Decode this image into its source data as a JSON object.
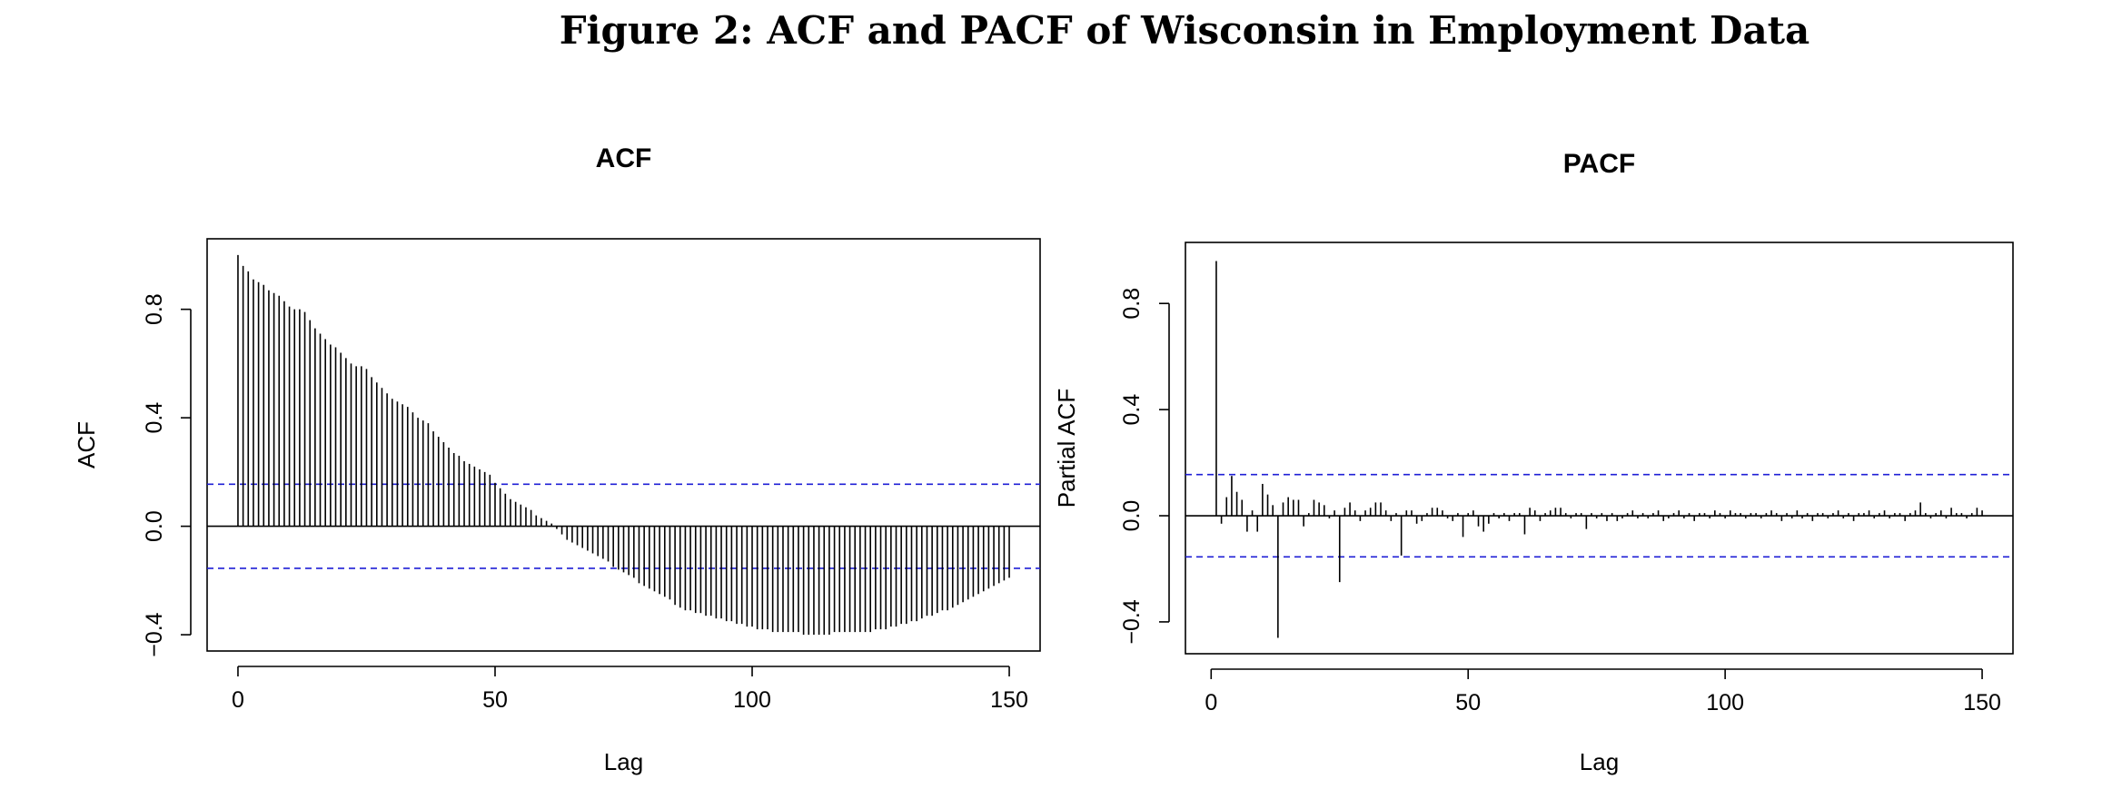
{
  "title": "Figure 2: ACF and PACF of Wisconsin in Employment Data",
  "chart_data": [
    {
      "type": "stem",
      "title": "ACF",
      "xlabel": "Lag",
      "ylabel": "ACF",
      "color": "#000000",
      "x": [
        0,
        1,
        2,
        3,
        4,
        5,
        6,
        7,
        8,
        9,
        10,
        11,
        12,
        13,
        14,
        15,
        16,
        17,
        18,
        19,
        20,
        21,
        22,
        23,
        24,
        25,
        26,
        27,
        28,
        29,
        30,
        31,
        32,
        33,
        34,
        35,
        36,
        37,
        38,
        39,
        40,
        41,
        42,
        43,
        44,
        45,
        46,
        47,
        48,
        49,
        50,
        51,
        52,
        53,
        54,
        55,
        56,
        57,
        58,
        59,
        60,
        61,
        62,
        63,
        64,
        65,
        66,
        67,
        68,
        69,
        70,
        71,
        72,
        73,
        74,
        75,
        76,
        77,
        78,
        79,
        80,
        81,
        82,
        83,
        84,
        85,
        86,
        87,
        88,
        89,
        90,
        91,
        92,
        93,
        94,
        95,
        96,
        97,
        98,
        99,
        100,
        101,
        102,
        103,
        104,
        105,
        106,
        107,
        108,
        109,
        110,
        111,
        112,
        113,
        114,
        115,
        116,
        117,
        118,
        119,
        120,
        121,
        122,
        123,
        124,
        125,
        126,
        127,
        128,
        129,
        130,
        131,
        132,
        133,
        134,
        135,
        136,
        137,
        138,
        139,
        140,
        141,
        142,
        143,
        144,
        145,
        146,
        147,
        148,
        149,
        150
      ],
      "values": [
        1.0,
        0.96,
        0.94,
        0.91,
        0.9,
        0.89,
        0.87,
        0.86,
        0.85,
        0.83,
        0.81,
        0.8,
        0.8,
        0.79,
        0.76,
        0.73,
        0.71,
        0.69,
        0.67,
        0.66,
        0.64,
        0.62,
        0.6,
        0.59,
        0.59,
        0.58,
        0.55,
        0.53,
        0.51,
        0.49,
        0.47,
        0.46,
        0.45,
        0.44,
        0.42,
        0.4,
        0.39,
        0.38,
        0.35,
        0.33,
        0.31,
        0.29,
        0.27,
        0.26,
        0.24,
        0.23,
        0.22,
        0.21,
        0.2,
        0.19,
        0.16,
        0.14,
        0.12,
        0.1,
        0.09,
        0.08,
        0.07,
        0.06,
        0.04,
        0.03,
        0.02,
        0.01,
        -0.01,
        -0.03,
        -0.05,
        -0.06,
        -0.07,
        -0.08,
        -0.09,
        -0.1,
        -0.11,
        -0.12,
        -0.13,
        -0.15,
        -0.16,
        -0.17,
        -0.18,
        -0.19,
        -0.21,
        -0.22,
        -0.23,
        -0.24,
        -0.25,
        -0.26,
        -0.27,
        -0.29,
        -0.3,
        -0.31,
        -0.31,
        -0.32,
        -0.32,
        -0.33,
        -0.33,
        -0.34,
        -0.34,
        -0.35,
        -0.35,
        -0.36,
        -0.36,
        -0.37,
        -0.37,
        -0.38,
        -0.38,
        -0.38,
        -0.39,
        -0.39,
        -0.39,
        -0.39,
        -0.39,
        -0.39,
        -0.4,
        -0.4,
        -0.4,
        -0.4,
        -0.4,
        -0.4,
        -0.39,
        -0.39,
        -0.39,
        -0.39,
        -0.39,
        -0.39,
        -0.39,
        -0.39,
        -0.38,
        -0.38,
        -0.38,
        -0.37,
        -0.37,
        -0.36,
        -0.36,
        -0.35,
        -0.35,
        -0.34,
        -0.33,
        -0.33,
        -0.32,
        -0.31,
        -0.31,
        -0.3,
        -0.29,
        -0.28,
        -0.27,
        -0.26,
        -0.25,
        -0.24,
        -0.23,
        -0.22,
        -0.21,
        -0.2,
        -0.19
      ],
      "ci": [
        -0.155,
        0.155
      ],
      "ci_color": "#1f1fd6",
      "xlim": [
        -6,
        156
      ],
      "ylim": [
        -0.46,
        1.06
      ],
      "xticks": [
        0,
        50,
        100,
        150
      ],
      "yticks": [
        {
          "value": -0.4,
          "label": "−0.4"
        },
        {
          "value": 0,
          "label": "0.0"
        },
        0.4,
        0.8
      ]
    },
    {
      "type": "stem",
      "title": "PACF",
      "xlabel": "Lag",
      "ylabel": "Partial ACF",
      "color": "#000000",
      "x": [
        1,
        2,
        3,
        4,
        5,
        6,
        7,
        8,
        9,
        10,
        11,
        12,
        13,
        14,
        15,
        16,
        17,
        18,
        19,
        20,
        21,
        22,
        23,
        24,
        25,
        26,
        27,
        28,
        29,
        30,
        31,
        32,
        33,
        34,
        35,
        36,
        37,
        38,
        39,
        40,
        41,
        42,
        43,
        44,
        45,
        46,
        47,
        48,
        49,
        50,
        51,
        52,
        53,
        54,
        55,
        56,
        57,
        58,
        59,
        60,
        61,
        62,
        63,
        64,
        65,
        66,
        67,
        68,
        69,
        70,
        71,
        72,
        73,
        74,
        75,
        76,
        77,
        78,
        79,
        80,
        81,
        82,
        83,
        84,
        85,
        86,
        87,
        88,
        89,
        90,
        91,
        92,
        93,
        94,
        95,
        96,
        97,
        98,
        99,
        100,
        101,
        102,
        103,
        104,
        105,
        106,
        107,
        108,
        109,
        110,
        111,
        112,
        113,
        114,
        115,
        116,
        117,
        118,
        119,
        120,
        121,
        122,
        123,
        124,
        125,
        126,
        127,
        128,
        129,
        130,
        131,
        132,
        133,
        134,
        135,
        136,
        137,
        138,
        139,
        140,
        141,
        142,
        143,
        144,
        145,
        146,
        147,
        148,
        149,
        150
      ],
      "values": [
        0.96,
        -0.03,
        0.07,
        0.15,
        0.09,
        0.06,
        -0.06,
        0.02,
        -0.06,
        0.12,
        0.08,
        0.04,
        -0.46,
        0.05,
        0.07,
        0.06,
        0.06,
        -0.04,
        0.01,
        0.06,
        0.05,
        0.04,
        -0.01,
        0.02,
        -0.25,
        0.03,
        0.05,
        0.02,
        -0.02,
        0.02,
        0.03,
        0.05,
        0.05,
        0.02,
        -0.02,
        0.01,
        -0.15,
        0.02,
        0.02,
        -0.03,
        -0.02,
        0.01,
        0.03,
        0.03,
        0.02,
        -0.01,
        -0.02,
        0.01,
        -0.08,
        0.01,
        0.02,
        -0.04,
        -0.06,
        -0.03,
        0.01,
        -0.01,
        0.01,
        -0.02,
        0.01,
        0.01,
        -0.07,
        0.03,
        0.02,
        -0.02,
        0.01,
        0.02,
        0.03,
        0.03,
        0.01,
        -0.01,
        0.01,
        0.01,
        -0.05,
        0.01,
        -0.01,
        0.01,
        -0.02,
        0.01,
        -0.02,
        -0.01,
        0.01,
        0.02,
        -0.01,
        0.01,
        -0.01,
        0.01,
        0.02,
        -0.02,
        -0.01,
        0.01,
        0.02,
        -0.01,
        0.01,
        -0.02,
        0.01,
        0.01,
        -0.01,
        0.02,
        0.01,
        -0.01,
        0.02,
        0.01,
        0.01,
        -0.01,
        0.01,
        0.01,
        -0.01,
        0.01,
        0.02,
        0.01,
        -0.02,
        0.01,
        -0.01,
        0.02,
        -0.01,
        0.01,
        -0.02,
        0.01,
        0.01,
        -0.01,
        0.01,
        0.02,
        -0.01,
        0.01,
        -0.02,
        0.01,
        0.01,
        0.02,
        -0.01,
        0.01,
        0.02,
        -0.01,
        0.01,
        0.01,
        -0.02,
        0.01,
        0.02,
        0.05,
        0.01,
        -0.01,
        0.01,
        0.02,
        -0.01,
        0.03,
        0.01,
        0.01,
        -0.01,
        0.01,
        0.03,
        0.02
      ],
      "ci": [
        -0.155,
        0.155
      ],
      "ci_color": "#1f1fd6",
      "xlim": [
        -5,
        156
      ],
      "ylim": [
        -0.52,
        1.03
      ],
      "xticks": [
        0,
        50,
        100,
        150
      ],
      "yticks": [
        {
          "value": -0.4,
          "label": "−0.4"
        },
        {
          "value": 0,
          "label": "0.0"
        },
        0.4,
        0.8
      ]
    }
  ]
}
